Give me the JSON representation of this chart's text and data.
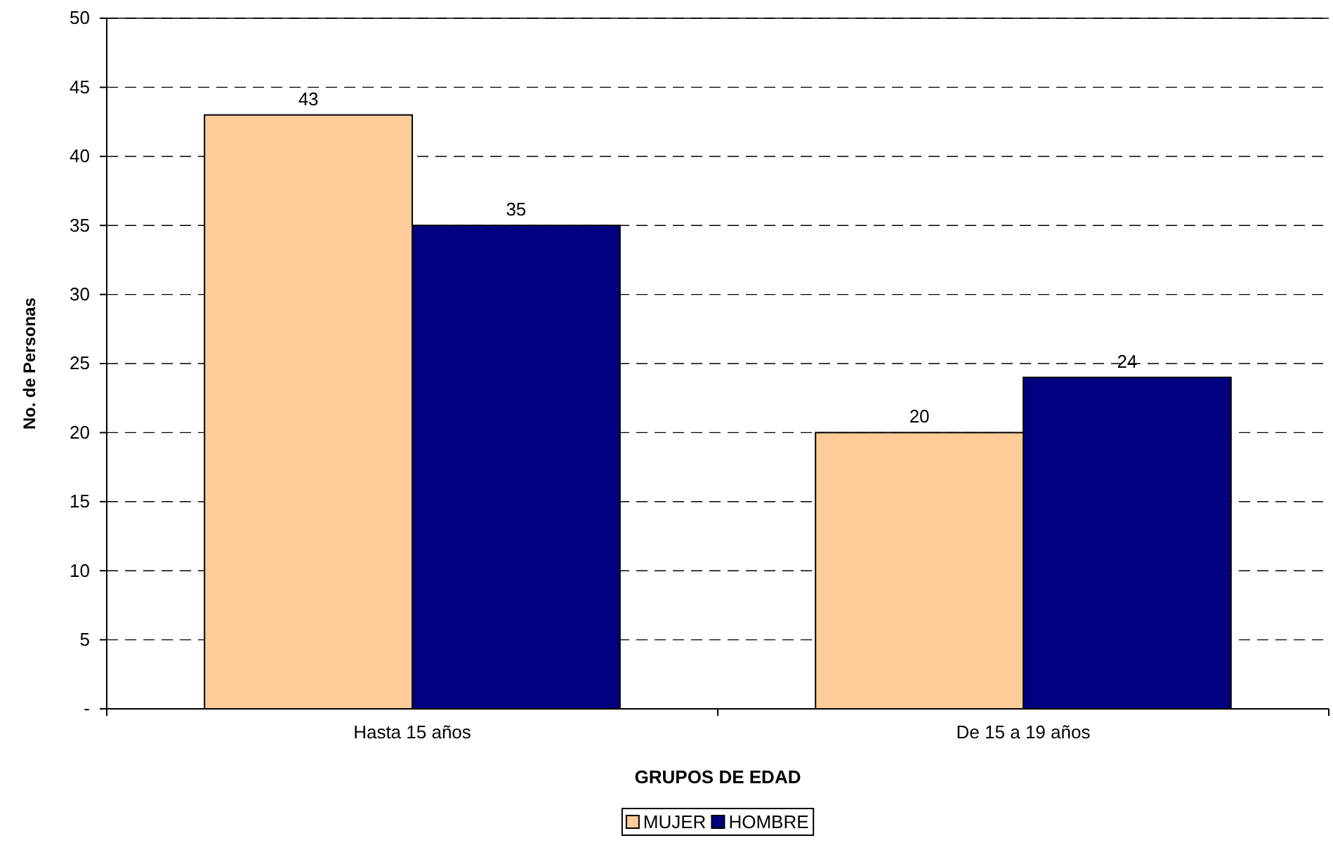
{
  "chart_data": {
    "type": "bar",
    "xlabel": "GRUPOS DE EDAD",
    "ylabel": "No. de Personas",
    "categories": [
      "Hasta 15 años",
      "De 15 a 19 años"
    ],
    "series": [
      {
        "name": "MUJER",
        "color": "#ffcc99",
        "values": [
          43,
          20
        ]
      },
      {
        "name": "HOMBRE",
        "color": "#000080",
        "values": [
          35,
          24
        ]
      }
    ],
    "ylim": [
      0,
      50
    ],
    "yticks": [
      {
        "value": 0,
        "label": "-"
      },
      5,
      10,
      15,
      20,
      25,
      30,
      35,
      40,
      45,
      50
    ],
    "grid": "y",
    "legend": "bottom",
    "data_labels": true
  }
}
